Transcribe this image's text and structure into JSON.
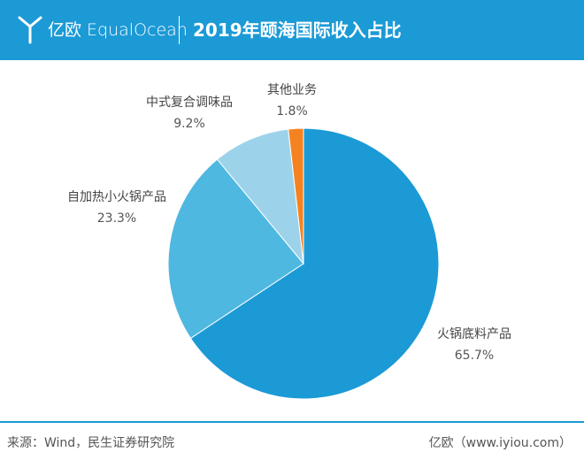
{
  "header": {
    "brand": "亿欧 EqualOcean",
    "title": "2019年颐海国际收入占比"
  },
  "chart_data": {
    "type": "pie",
    "title": "2019年颐海国际收入占比",
    "slices": [
      {
        "label": "火锅底料产品",
        "value": 65.7,
        "value_label": "65.7%",
        "color": "#1b9ad6"
      },
      {
        "label": "自加热小火锅产品",
        "value": 23.3,
        "value_label": "23.3%",
        "color": "#4fb8e0"
      },
      {
        "label": "中式复合调味品",
        "value": 9.2,
        "value_label": "9.2%",
        "color": "#9dd3ea"
      },
      {
        "label": "其他业务",
        "value": 1.8,
        "value_label": "1.8%",
        "color": "#f58220"
      }
    ],
    "start": "12 o'clock",
    "direction": "clockwise",
    "legend": "none"
  },
  "footer": {
    "source": "来源：Wind，民生证券研究院",
    "site": "亿欧（www.iyiou.com）"
  }
}
